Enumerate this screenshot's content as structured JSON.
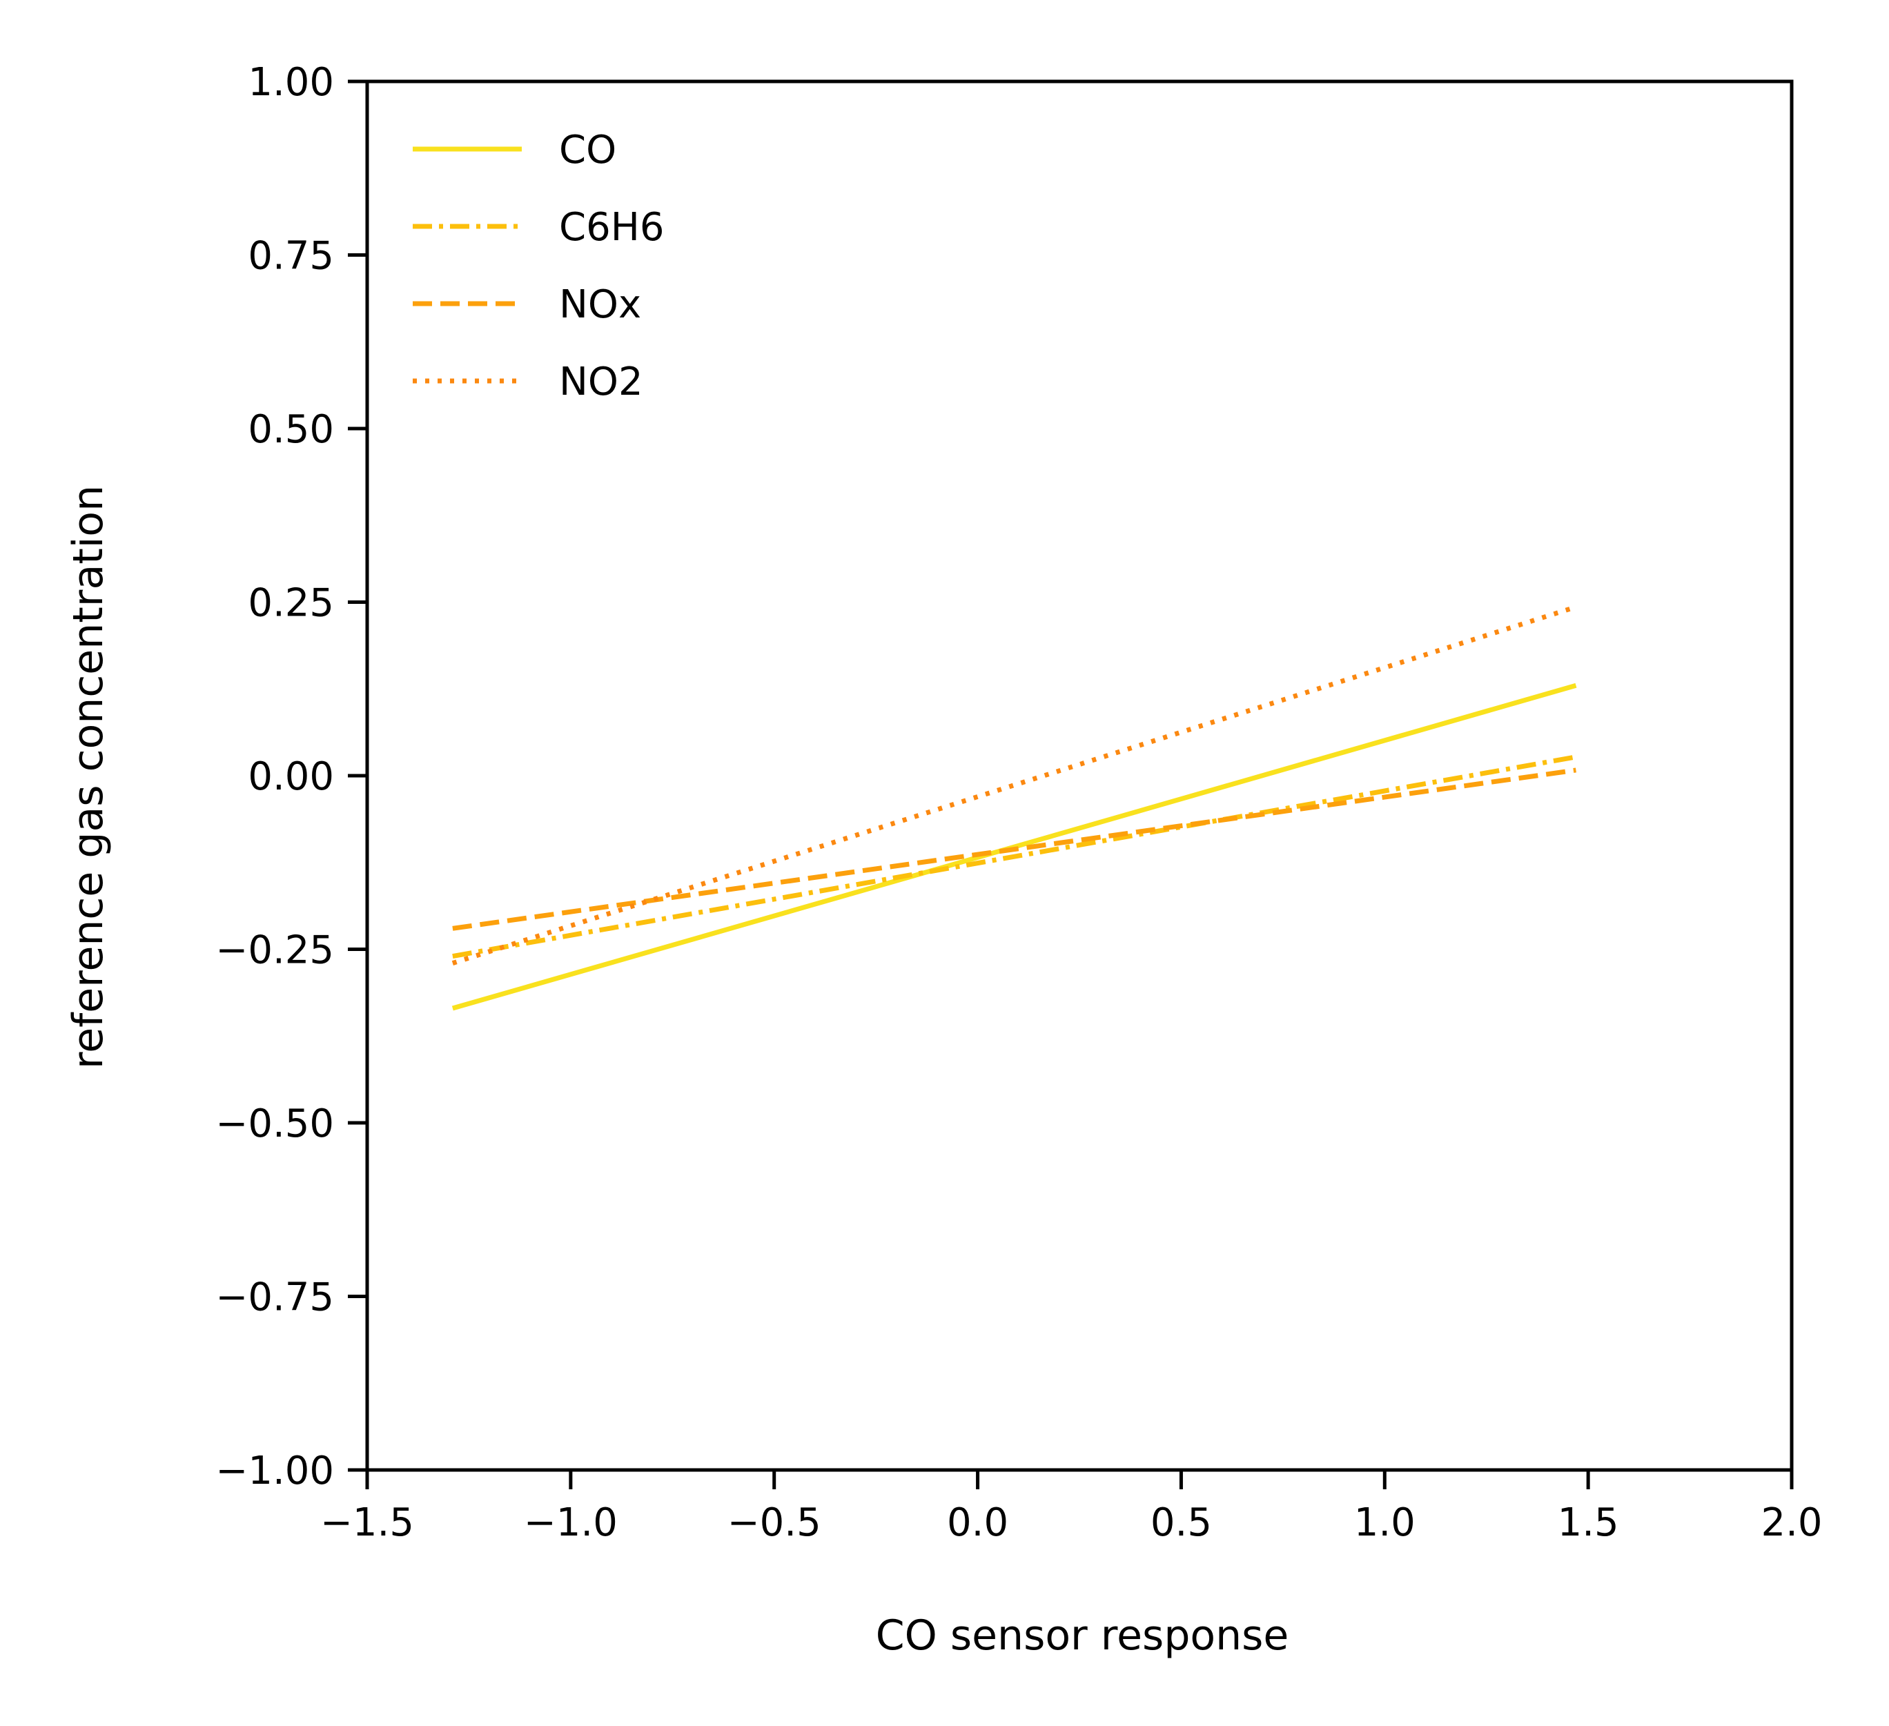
{
  "chart_data": {
    "type": "line",
    "title": "",
    "xlabel": "CO sensor response",
    "ylabel": "reference gas concentration",
    "xlim": [
      -1.5,
      2.0
    ],
    "ylim": [
      -1.0,
      1.0
    ],
    "xticks": [
      -1.5,
      -1.0,
      -0.5,
      0.0,
      0.5,
      1.0,
      1.5,
      2.0
    ],
    "xtick_labels": [
      "−1.5",
      "−1.0",
      "−0.5",
      "0.0",
      "0.5",
      "1.0",
      "1.5",
      "2.0"
    ],
    "yticks": [
      1.0,
      0.75,
      0.5,
      0.25,
      0.0,
      -0.25,
      -0.5,
      -0.75,
      -1.0
    ],
    "ytick_labels": [
      "1.00",
      "0.75",
      "0.50",
      "0.25",
      "0.00",
      "−0.25",
      "−0.50",
      "−0.75",
      "−1.00"
    ],
    "grid": false,
    "legend_position": "top-left",
    "series": [
      {
        "name": "CO",
        "x": [
          -1.29,
          1.47
        ],
        "y": [
          -0.335,
          0.13
        ],
        "color": "#f9e11e",
        "dash": "solid"
      },
      {
        "name": "C6H6",
        "x": [
          -1.29,
          1.47
        ],
        "y": [
          -0.26,
          0.027
        ],
        "color": "#fcbf0c",
        "dash": "dashdot"
      },
      {
        "name": "NOx",
        "x": [
          -1.29,
          1.47
        ],
        "y": [
          -0.22,
          0.008
        ],
        "color": "#fca00c",
        "dash": "dashed"
      },
      {
        "name": "NO2",
        "x": [
          -1.29,
          1.47
        ],
        "y": [
          -0.27,
          0.243
        ],
        "color": "#fb8810",
        "dash": "dotted"
      }
    ]
  }
}
